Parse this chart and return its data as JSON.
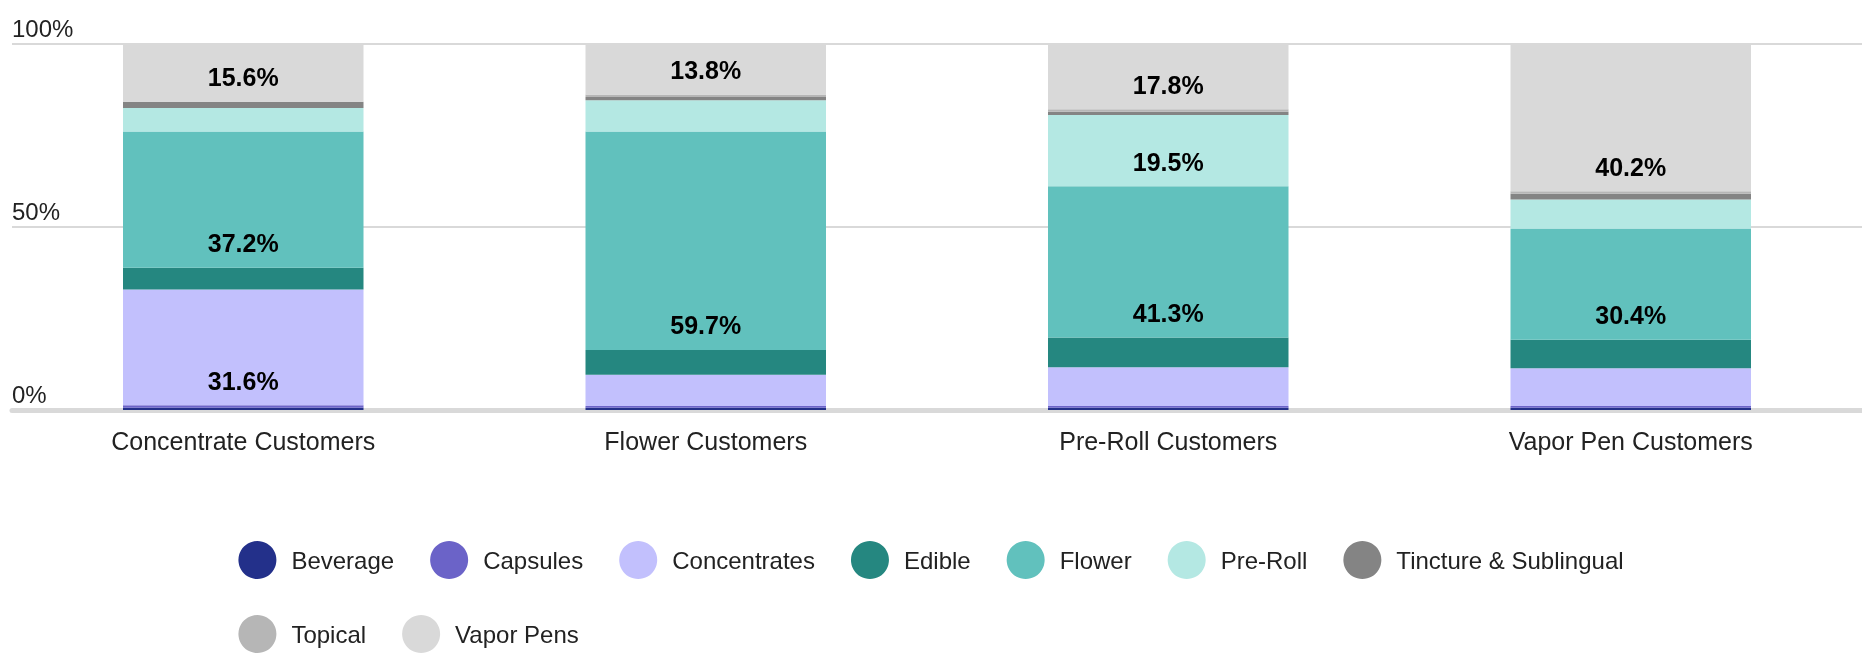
{
  "chart_data": {
    "type": "bar",
    "stacked": true,
    "categories": [
      "Concentrate Customers",
      "Flower Customers",
      "Pre-Roll Customers",
      "Vapor Pen Customers"
    ],
    "ylim": [
      0,
      100
    ],
    "yticks": [
      {
        "value": 0,
        "label": "0%"
      },
      {
        "value": 50,
        "label": "50%"
      },
      {
        "value": 100,
        "label": "100%"
      }
    ],
    "grid": "y",
    "legend": "bottom",
    "marker": "circle",
    "series": [
      {
        "name": "Beverage",
        "color": "#23308a",
        "values": [
          0.6,
          0.6,
          0.6,
          0.6
        ]
      },
      {
        "name": "Capsules",
        "color": "#6b63c8",
        "values": [
          0.7,
          0.5,
          0.5,
          0.5
        ]
      },
      {
        "name": "Concentrates",
        "color": "#c2c0fd",
        "values": [
          31.6,
          8.5,
          10.6,
          10.3
        ],
        "value_labels": [
          "31.6%",
          null,
          null,
          null
        ]
      },
      {
        "name": "Edible",
        "color": "#258780",
        "values": [
          6.0,
          6.8,
          8.1,
          7.8
        ]
      },
      {
        "name": "Flower",
        "color": "#61c1bd",
        "values": [
          37.2,
          59.7,
          41.3,
          30.4
        ],
        "value_labels": [
          "37.2%",
          "59.7%",
          "41.3%",
          "30.4%"
        ]
      },
      {
        "name": "Pre-Roll",
        "color": "#b4e8e3",
        "values": [
          6.4,
          8.5,
          19.5,
          7.9
        ],
        "value_labels": [
          null,
          null,
          "19.5%",
          null
        ]
      },
      {
        "name": "Tincture & Sublingual",
        "color": "#848484",
        "values": [
          1.7,
          0.9,
          0.9,
          1.6
        ]
      },
      {
        "name": "Topical",
        "color": "#b6b6b6",
        "values": [
          null,
          0.7,
          0.7,
          0.7
        ]
      },
      {
        "name": "Vapor Pens",
        "color": "#d9d9d9",
        "values": [
          15.6,
          13.8,
          17.8,
          40.2
        ],
        "value_labels": [
          "15.6%",
          "13.8%",
          "17.8%",
          "40.2%"
        ]
      }
    ]
  }
}
